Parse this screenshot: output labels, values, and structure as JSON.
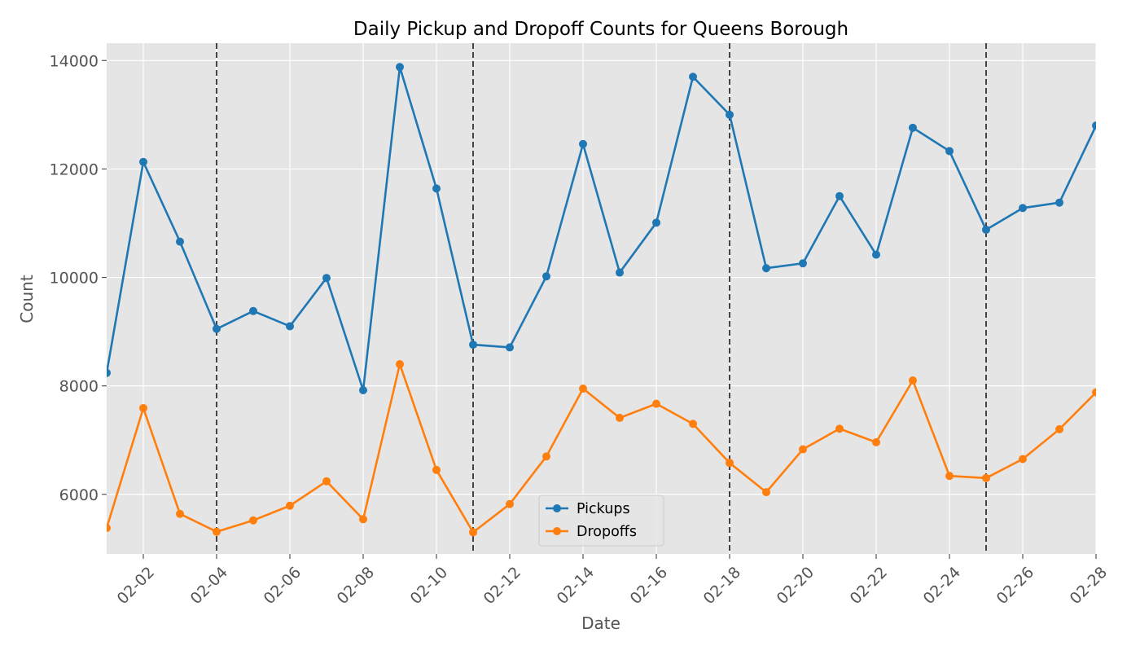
{
  "chart_data": {
    "type": "line",
    "title": "Daily Pickup and Dropoff Counts for Queens Borough",
    "xlabel": "Date",
    "ylabel": "Count",
    "x": [
      "02-01",
      "02-02",
      "02-03",
      "02-04",
      "02-05",
      "02-06",
      "02-07",
      "02-08",
      "02-09",
      "02-10",
      "02-11",
      "02-12",
      "02-13",
      "02-14",
      "02-15",
      "02-16",
      "02-17",
      "02-18",
      "02-19",
      "02-20",
      "02-21",
      "02-22",
      "02-23",
      "02-24",
      "02-25",
      "02-26",
      "02-27",
      "02-28"
    ],
    "x_tick_labels": [
      "02-02",
      "02-04",
      "02-06",
      "02-08",
      "02-10",
      "02-12",
      "02-14",
      "02-16",
      "02-18",
      "02-20",
      "02-22",
      "02-24",
      "02-26",
      "02-28"
    ],
    "y_ticks": [
      "6000",
      "8000",
      "10000",
      "12000",
      "14000"
    ],
    "ylim": [
      4900,
      14320
    ],
    "grid": true,
    "legend_position": "bottom-center",
    "vertical_dashed_lines_at": [
      "02-04",
      "02-11",
      "02-18",
      "02-25"
    ],
    "series": [
      {
        "name": "Pickups",
        "color": "#1f77b4",
        "marker": "circle",
        "values": [
          8240,
          12130,
          10660,
          9050,
          9380,
          9100,
          9990,
          7920,
          13880,
          11640,
          8760,
          8710,
          10020,
          12460,
          10090,
          11010,
          13700,
          13000,
          10170,
          10260,
          11500,
          10420,
          12760,
          12330,
          10880,
          11280,
          11380,
          12800
        ]
      },
      {
        "name": "Dropoffs",
        "color": "#ff7f0e",
        "marker": "circle",
        "values": [
          5380,
          7590,
          5640,
          5310,
          5520,
          5790,
          6240,
          5540,
          8400,
          6450,
          5300,
          5820,
          6700,
          7950,
          7410,
          7670,
          7300,
          6580,
          6040,
          6830,
          7210,
          6960,
          8100,
          6340,
          6300,
          6650,
          7200,
          7880
        ]
      }
    ],
    "colors": {
      "plot_background": "#e5e5e5",
      "grid": "#ffffff",
      "marker_line": "#444444"
    }
  }
}
